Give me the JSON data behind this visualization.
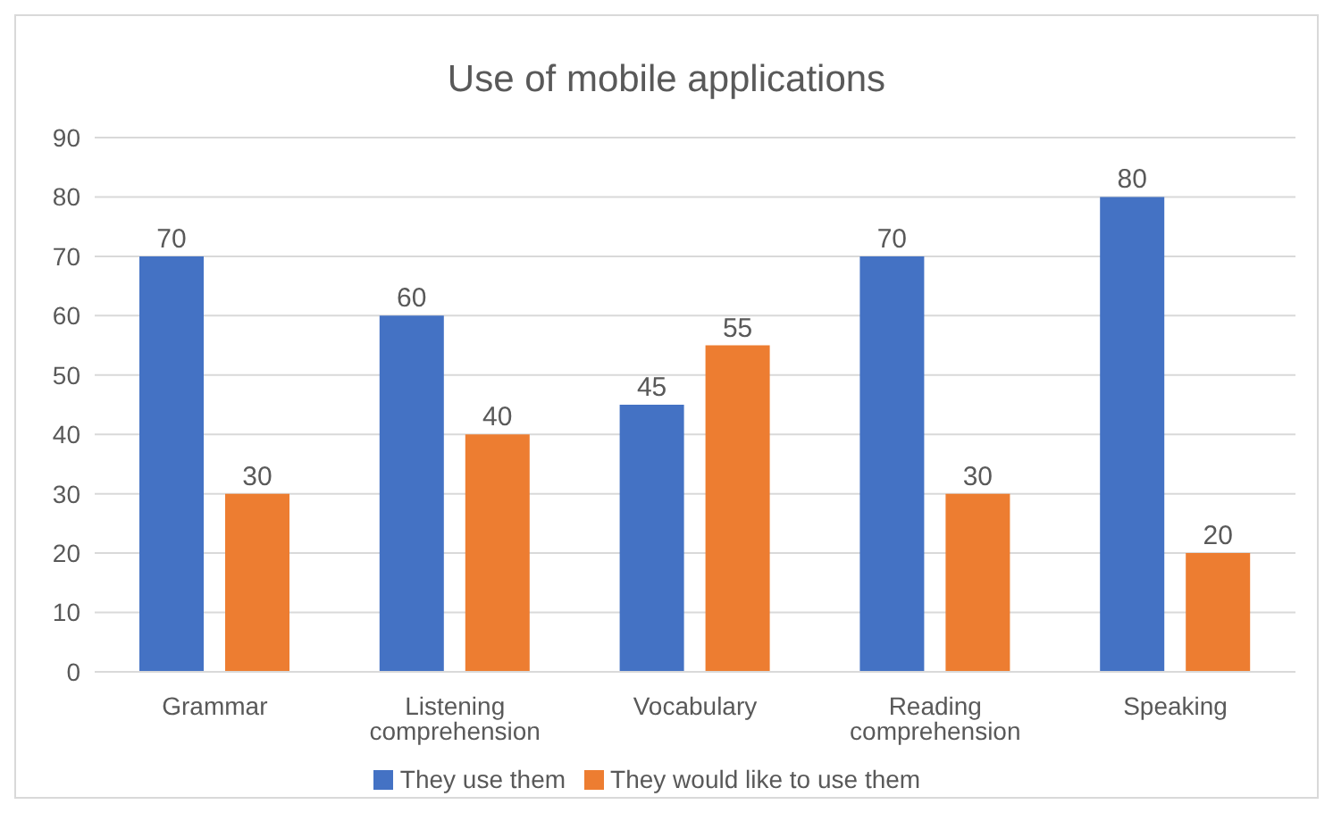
{
  "chart_data": {
    "type": "bar",
    "title": "Use of mobile applications",
    "categories": [
      "Grammar",
      "Listening comprehension",
      "Vocabulary",
      "Reading comprehension",
      "Speaking"
    ],
    "series": [
      {
        "name": "They use them",
        "color": "#4472c4",
        "values": [
          70,
          60,
          45,
          70,
          80
        ]
      },
      {
        "name": "They would like to use them",
        "color": "#ed7d31",
        "values": [
          30,
          40,
          55,
          30,
          20
        ]
      }
    ],
    "ylim": [
      0,
      90
    ],
    "yticks": [
      0,
      10,
      20,
      30,
      40,
      50,
      60,
      70,
      80,
      90
    ],
    "grid": "y",
    "legend": "bottom",
    "data_labels": true
  }
}
